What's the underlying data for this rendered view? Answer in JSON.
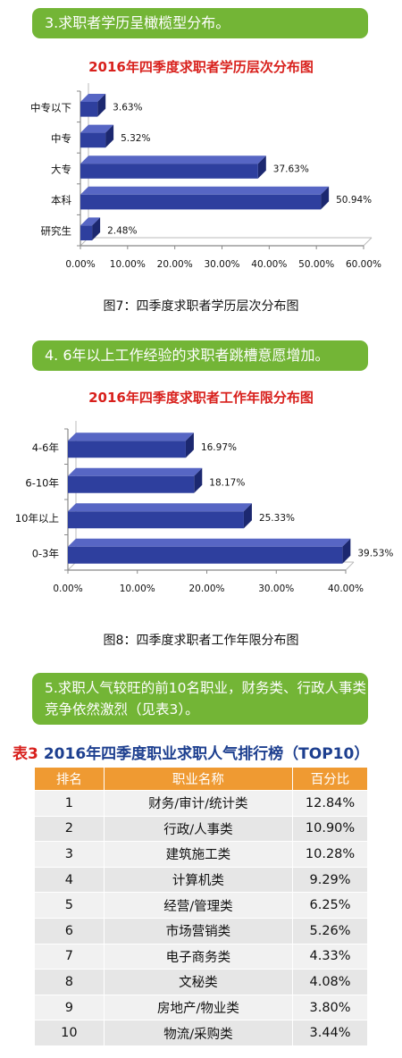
{
  "section1": {
    "banner": "3.求职者学历呈橄榄型分布。"
  },
  "section2": {
    "banner": "4. 6年以上工作经验的求职者跳槽意愿增加。"
  },
  "section3": {
    "banner": "5.求职人气较旺的前10名职业，财务类、行政人事类竞争依然激烈（见表3）。"
  },
  "chart_data": [
    {
      "type": "bar",
      "orientation": "horizontal",
      "title": "2016年四季度求职者学历层次分布图",
      "caption": "图7：四季度求职者学历层次分布图",
      "categories": [
        "中专以下",
        "中专",
        "大专",
        "本科",
        "研究生"
      ],
      "values": [
        3.63,
        5.32,
        37.63,
        50.94,
        2.48
      ],
      "value_labels": [
        "3.63%",
        "5.32%",
        "37.63%",
        "50.94%",
        "2.48%"
      ],
      "xlim": [
        0,
        60
      ],
      "xticks": [
        0,
        10,
        20,
        30,
        40,
        50,
        60
      ],
      "xtick_labels": [
        "0.00%",
        "10.00%",
        "20.00%",
        "30.00%",
        "40.00%",
        "50.00%",
        "60.00%"
      ],
      "bar_color": "#2e3f9e",
      "grid": false
    },
    {
      "type": "bar",
      "orientation": "horizontal",
      "title": "2016年四季度求职者工作年限分布图",
      "caption": "图8：四季度求职者工作年限分布图",
      "categories": [
        "4-6年",
        "6-10年",
        "10年以上",
        "0-3年"
      ],
      "values": [
        16.97,
        18.17,
        25.33,
        39.53
      ],
      "value_labels": [
        "16.97%",
        "18.17%",
        "25.33%",
        "39.53%"
      ],
      "xlim": [
        0,
        40
      ],
      "xticks": [
        0,
        10,
        20,
        30,
        40
      ],
      "xtick_labels": [
        "0.00%",
        "10.00%",
        "20.00%",
        "30.00%",
        "40.00%"
      ],
      "bar_color": "#2e3f9e",
      "grid": false
    },
    {
      "type": "table",
      "label": "表3",
      "title": "2016年四季度职业求职人气排行榜（TOP10）",
      "columns": [
        "排名",
        "职业名称",
        "百分比"
      ],
      "rows": [
        [
          "1",
          "财务/审计/统计类",
          "12.84%"
        ],
        [
          "2",
          "行政/人事类",
          "10.90%"
        ],
        [
          "3",
          "建筑施工类",
          "10.28%"
        ],
        [
          "4",
          "计算机类",
          "9.29%"
        ],
        [
          "5",
          "经营/管理类",
          "6.25%"
        ],
        [
          "6",
          "市场营销类",
          "5.26%"
        ],
        [
          "7",
          "电子商务类",
          "4.33%"
        ],
        [
          "8",
          "文秘类",
          "4.08%"
        ],
        [
          "9",
          "房地产/物业类",
          "3.80%"
        ],
        [
          "10",
          "物流/采购类",
          "3.44%"
        ]
      ]
    }
  ]
}
